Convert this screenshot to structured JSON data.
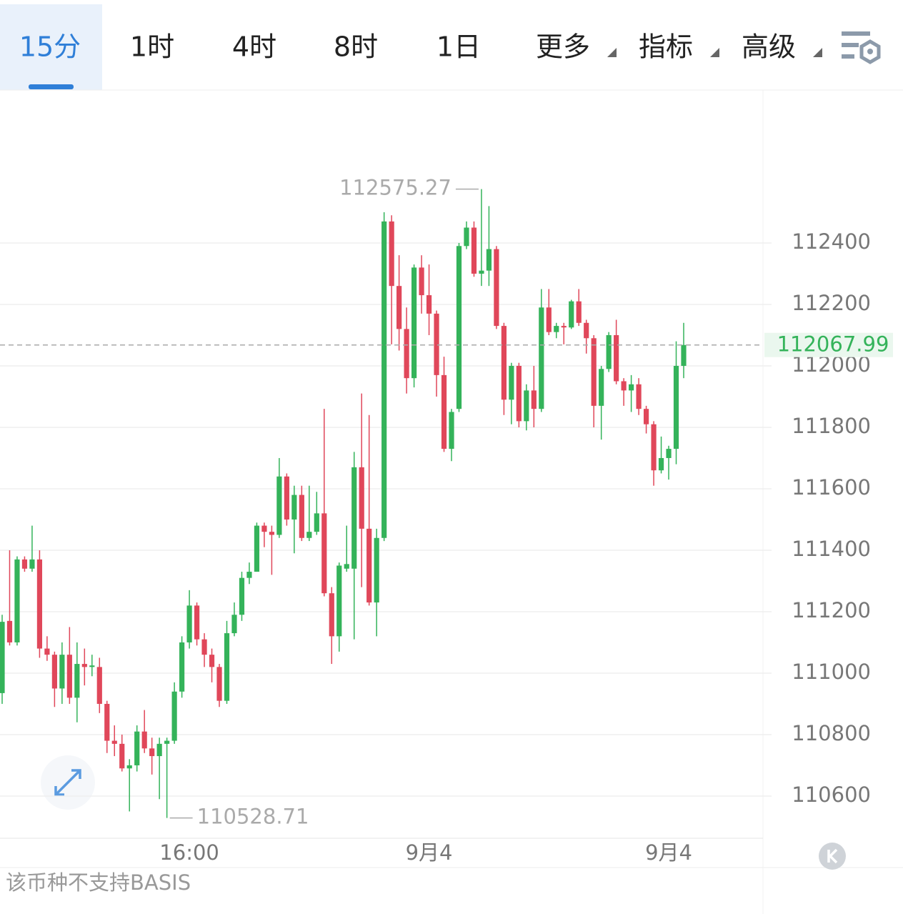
{
  "tabs": [
    "15分",
    "1时",
    "4时",
    "8时",
    "1日",
    "更多",
    "指标",
    "高级"
  ],
  "footer": "该币种不支持BASIS",
  "chart_data": {
    "type": "candlestick",
    "categories": [
      null,
      null,
      null,
      null,
      null,
      null,
      null,
      null,
      null,
      null,
      null,
      null,
      null,
      null,
      null,
      null,
      null,
      null,
      null,
      null,
      null,
      null,
      null,
      null,
      null,
      "16:00",
      null,
      null,
      null,
      null,
      null,
      null,
      null,
      null,
      null,
      null,
      null,
      null,
      null,
      null,
      null,
      null,
      null,
      null,
      null,
      null,
      null,
      null,
      null,
      null,
      null,
      null,
      null,
      null,
      null,
      null,
      null,
      "9月4",
      null,
      null,
      null,
      null,
      null,
      null,
      null,
      null,
      null,
      null,
      null,
      null,
      null,
      null,
      null,
      null,
      null,
      null,
      null,
      null,
      null,
      null,
      null,
      null,
      null,
      null,
      null,
      null,
      null,
      null,
      null,
      "9月4",
      null,
      null
    ],
    "open": [
      110935,
      111170,
      111100,
      111370,
      111340,
      111370,
      111080,
      111060,
      110950,
      111060,
      110920,
      111030,
      111020,
      111020,
      110900,
      110780,
      110770,
      110690,
      110700,
      110810,
      110755,
      110730,
      110770,
      110780,
      110940,
      111100,
      111220,
      111110,
      111060,
      111020,
      110910,
      111130,
      111190,
      111310,
      111330,
      111480,
      111460,
      111450,
      111640,
      111500,
      111580,
      111440,
      111460,
      111520,
      111260,
      111120,
      111340,
      111340,
      111670,
      111470,
      111230,
      111440,
      112470,
      112260,
      112120,
      111960,
      112320,
      112230,
      112170,
      111970,
      111730,
      111860,
      112390,
      112450,
      112300,
      112310,
      112380,
      112130,
      111890,
      112000,
      111820,
      111920,
      111860,
      112190,
      112110,
      112130,
      112125,
      112210,
      112140,
      112090,
      111870,
      111990,
      112100,
      111950,
      111920,
      111940,
      111860,
      111810,
      111660,
      111700,
      111730,
      112000
    ],
    "high": [
      111190,
      111400,
      111380,
      111380,
      111480,
      111400,
      111120,
      111070,
      111100,
      111150,
      111100,
      111080,
      111060,
      111050,
      110910,
      110830,
      110800,
      110720,
      110830,
      110880,
      110790,
      110790,
      110790,
      110970,
      111120,
      111270,
      111230,
      111130,
      111080,
      111030,
      111170,
      111230,
      111330,
      111360,
      111490,
      111490,
      111480,
      111700,
      111650,
      111610,
      111610,
      111610,
      111590,
      111860,
      111280,
      111360,
      111480,
      111720,
      111910,
      111840,
      111470,
      112500,
      112490,
      112360,
      112190,
      112330,
      112360,
      112330,
      112180,
      112030,
      111860,
      112400,
      112470,
      112470,
      112575.27,
      112520,
      112390,
      112140,
      112010,
      112010,
      111940,
      112000,
      112250,
      112250,
      112140,
      112140,
      112215,
      112250,
      112150,
      112100,
      112000,
      112110,
      112150,
      111960,
      111970,
      111960,
      111870,
      111820,
      111770,
      111740,
      112080,
      112140
    ],
    "low": [
      110900,
      111090,
      111090,
      111330,
      111330,
      111050,
      111040,
      110890,
      110900,
      110900,
      110840,
      110960,
      110990,
      110870,
      110740,
      110730,
      110680,
      110550,
      110680,
      110740,
      110670,
      110590,
      110528.71,
      110770,
      110920,
      111080,
      111090,
      111020,
      110970,
      110890,
      110900,
      111120,
      111170,
      111290,
      111330,
      111410,
      111320,
      111440,
      111480,
      111390,
      111430,
      111430,
      111450,
      111250,
      111030,
      111070,
      111330,
      111110,
      111280,
      111220,
      111120,
      111430,
      112070,
      112050,
      111910,
      111930,
      112170,
      112100,
      111900,
      111720,
      111690,
      111850,
      112380,
      112290,
      112260,
      112260,
      112120,
      111840,
      111810,
      111800,
      111790,
      111800,
      111850,
      112100,
      112090,
      112070,
      112120,
      112130,
      112040,
      111800,
      111760,
      111980,
      111940,
      111870,
      111850,
      111840,
      111780,
      111610,
      111650,
      111630,
      111680,
      111960
    ],
    "close": [
      111167,
      111100,
      111370,
      111340,
      111370,
      111080,
      111060,
      110950,
      111060,
      110920,
      111030,
      111020,
      111025,
      110900,
      110780,
      110770,
      110690,
      110700,
      110810,
      110755,
      110730,
      110770,
      110780,
      110940,
      111100,
      111220,
      111110,
      111060,
      111020,
      110910,
      111130,
      111190,
      111310,
      111330,
      111480,
      111460,
      111450,
      111640,
      111500,
      111580,
      111440,
      111460,
      111520,
      111260,
      111120,
      111350,
      111355,
      111670,
      111470,
      111230,
      111440,
      112470,
      112260,
      112120,
      111960,
      112320,
      112230,
      112170,
      111970,
      111730,
      111850,
      112390,
      112450,
      112300,
      112310,
      112380,
      112130,
      111890,
      112000,
      111820,
      111920,
      111860,
      112190,
      112110,
      112130,
      112125,
      112210,
      112140,
      112090,
      111870,
      111990,
      112100,
      111950,
      111920,
      111940,
      111860,
      111810,
      111660,
      111700,
      111730,
      112000,
      112067.99
    ],
    "up_color": "#34b35a",
    "down_color": "#e0475a",
    "ylim": [
      110465,
      112893
    ],
    "yticks": [
      110600,
      110800,
      111000,
      111200,
      111400,
      111600,
      111800,
      112000,
      112200,
      112400
    ],
    "grid": true
  }
}
